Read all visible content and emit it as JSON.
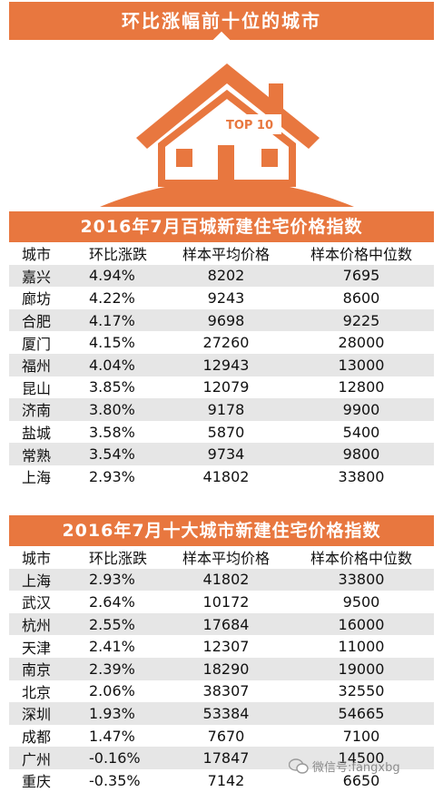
{
  "banner": {
    "title": "环比涨幅前十位的城市"
  },
  "badge": {
    "text": "TOP 10"
  },
  "colors": {
    "accent": "#e8773f",
    "stripe": "#e6e6e6"
  },
  "tables": [
    {
      "title": "2016年7月百城新建住宅价格指数",
      "headers": [
        "城市",
        "环比涨跌",
        "样本平均价格",
        "样本价格中位数"
      ],
      "rows": [
        [
          "嘉兴",
          "4.94%",
          "8202",
          "7695"
        ],
        [
          "廊坊",
          "4.22%",
          "9243",
          "8600"
        ],
        [
          "合肥",
          "4.17%",
          "9698",
          "9225"
        ],
        [
          "厦门",
          "4.15%",
          "27260",
          "28000"
        ],
        [
          "福州",
          "4.04%",
          "12943",
          "13000"
        ],
        [
          "昆山",
          "3.85%",
          "12079",
          "12800"
        ],
        [
          "济南",
          "3.80%",
          "9178",
          "9900"
        ],
        [
          "盐城",
          "3.58%",
          "5870",
          "5400"
        ],
        [
          "常熟",
          "3.54%",
          "9734",
          "9800"
        ],
        [
          "上海",
          "2.93%",
          "41802",
          "33800"
        ]
      ]
    },
    {
      "title": "2016年7月十大城市新建住宅价格指数",
      "headers": [
        "城市",
        "环比涨跌",
        "样本平均价格",
        "样本价格中位数"
      ],
      "rows": [
        [
          "上海",
          "2.93%",
          "41802",
          "33800"
        ],
        [
          "武汉",
          "2.64%",
          "10172",
          "9500"
        ],
        [
          "杭州",
          "2.55%",
          "17684",
          "16000"
        ],
        [
          "天津",
          "2.41%",
          "12307",
          "11000"
        ],
        [
          "南京",
          "2.39%",
          "18290",
          "19000"
        ],
        [
          "北京",
          "2.06%",
          "38307",
          "32550"
        ],
        [
          "深圳",
          "1.93%",
          "53384",
          "54665"
        ],
        [
          "成都",
          "1.47%",
          "7670",
          "7100"
        ],
        [
          "广州",
          "-0.16%",
          "17847",
          "14500"
        ],
        [
          "重庆",
          "-0.35%",
          "7142",
          "6650"
        ]
      ]
    }
  ],
  "watermark": {
    "text": "微信号:fangxbg",
    "icon": "wechat-icon"
  }
}
